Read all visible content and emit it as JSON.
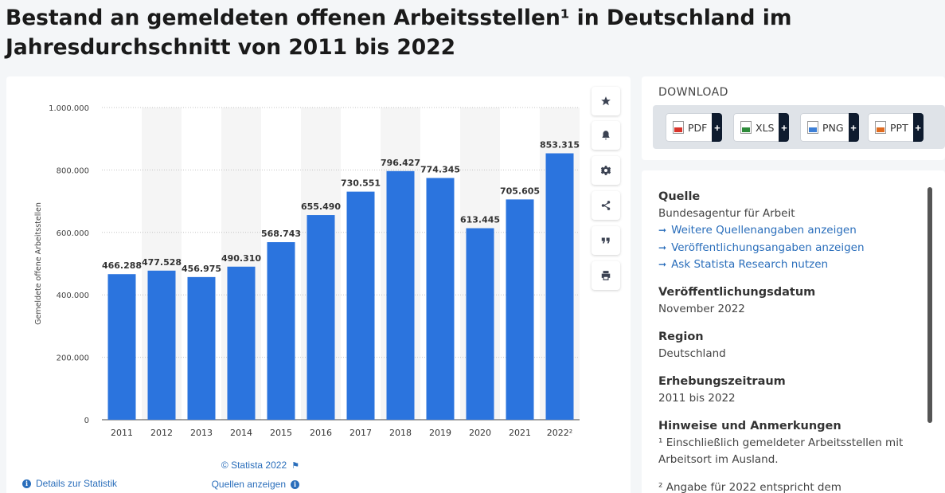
{
  "title": "Bestand an gemeldeten offenen Arbeitsstellen¹ in Deutschland im Jahresdurchschnitt von 2011 bis 2022",
  "chart_data": {
    "type": "bar",
    "title": "Bestand an gemeldeten offenen Arbeitsstellen¹ in Deutschland im Jahresdurchschnitt von 2011 bis 2022",
    "categories": [
      "2011",
      "2012",
      "2013",
      "2014",
      "2015",
      "2016",
      "2017",
      "2018",
      "2019",
      "2020",
      "2021",
      "2022²"
    ],
    "values": [
      466288,
      477528,
      456975,
      490310,
      568743,
      655490,
      730551,
      796427,
      774345,
      613445,
      705605,
      853315
    ],
    "value_labels": [
      "466.288",
      "477.528",
      "456.975",
      "490.310",
      "568.743",
      "655.490",
      "730.551",
      "796.427",
      "774.345",
      "613.445",
      "705.605",
      "853.315"
    ],
    "ylabel": "Gemeldete offene Arbeitsstellen",
    "xlabel": "",
    "ylim": [
      0,
      1000000
    ],
    "yticks": [
      0,
      200000,
      400000,
      600000,
      800000,
      1000000
    ],
    "ytick_labels": [
      "0",
      "200.000",
      "400.000",
      "600.000",
      "800.000",
      "1.000.000"
    ],
    "grid": true,
    "bar_color": "#2b74de"
  },
  "chart_footer": {
    "copyright": "© Statista 2022",
    "details_link": "Details zur Statistik",
    "sources_link": "Quellen anzeigen"
  },
  "tools": [
    "star-icon",
    "bell-icon",
    "gear-icon",
    "share-icon",
    "quote-icon",
    "print-icon"
  ],
  "download": {
    "heading": "DOWNLOAD",
    "buttons": [
      {
        "label": "PDF",
        "plus": "+",
        "color": "#d9342b"
      },
      {
        "label": "XLS",
        "plus": "+",
        "color": "#2e8b3a"
      },
      {
        "label": "PNG",
        "plus": "+",
        "color": "#3d7fd6"
      },
      {
        "label": "PPT",
        "plus": "+",
        "color": "#e06b1f"
      }
    ]
  },
  "info": {
    "source_heading": "Quelle",
    "source_text": "Bundesagentur für Arbeit",
    "links": [
      "Weitere Quellenangaben anzeigen",
      "Veröffentlichungsangaben anzeigen",
      "Ask Statista Research nutzen"
    ],
    "pubdate_heading": "Veröffentlichungsdatum",
    "pubdate_text": "November 2022",
    "region_heading": "Region",
    "region_text": "Deutschland",
    "period_heading": "Erhebungszeitraum",
    "period_text": "2011 bis 2022",
    "notes_heading": "Hinweise und Anmerkungen",
    "notes_text": "¹ Einschließlich gemeldeter Arbeitsstellen mit Arbeitsort im Ausland.",
    "notes_text2": "² Angabe für 2022 entspricht dem"
  },
  "colors": {
    "accent": "#2a6ebb",
    "bar": "#2b74de"
  }
}
